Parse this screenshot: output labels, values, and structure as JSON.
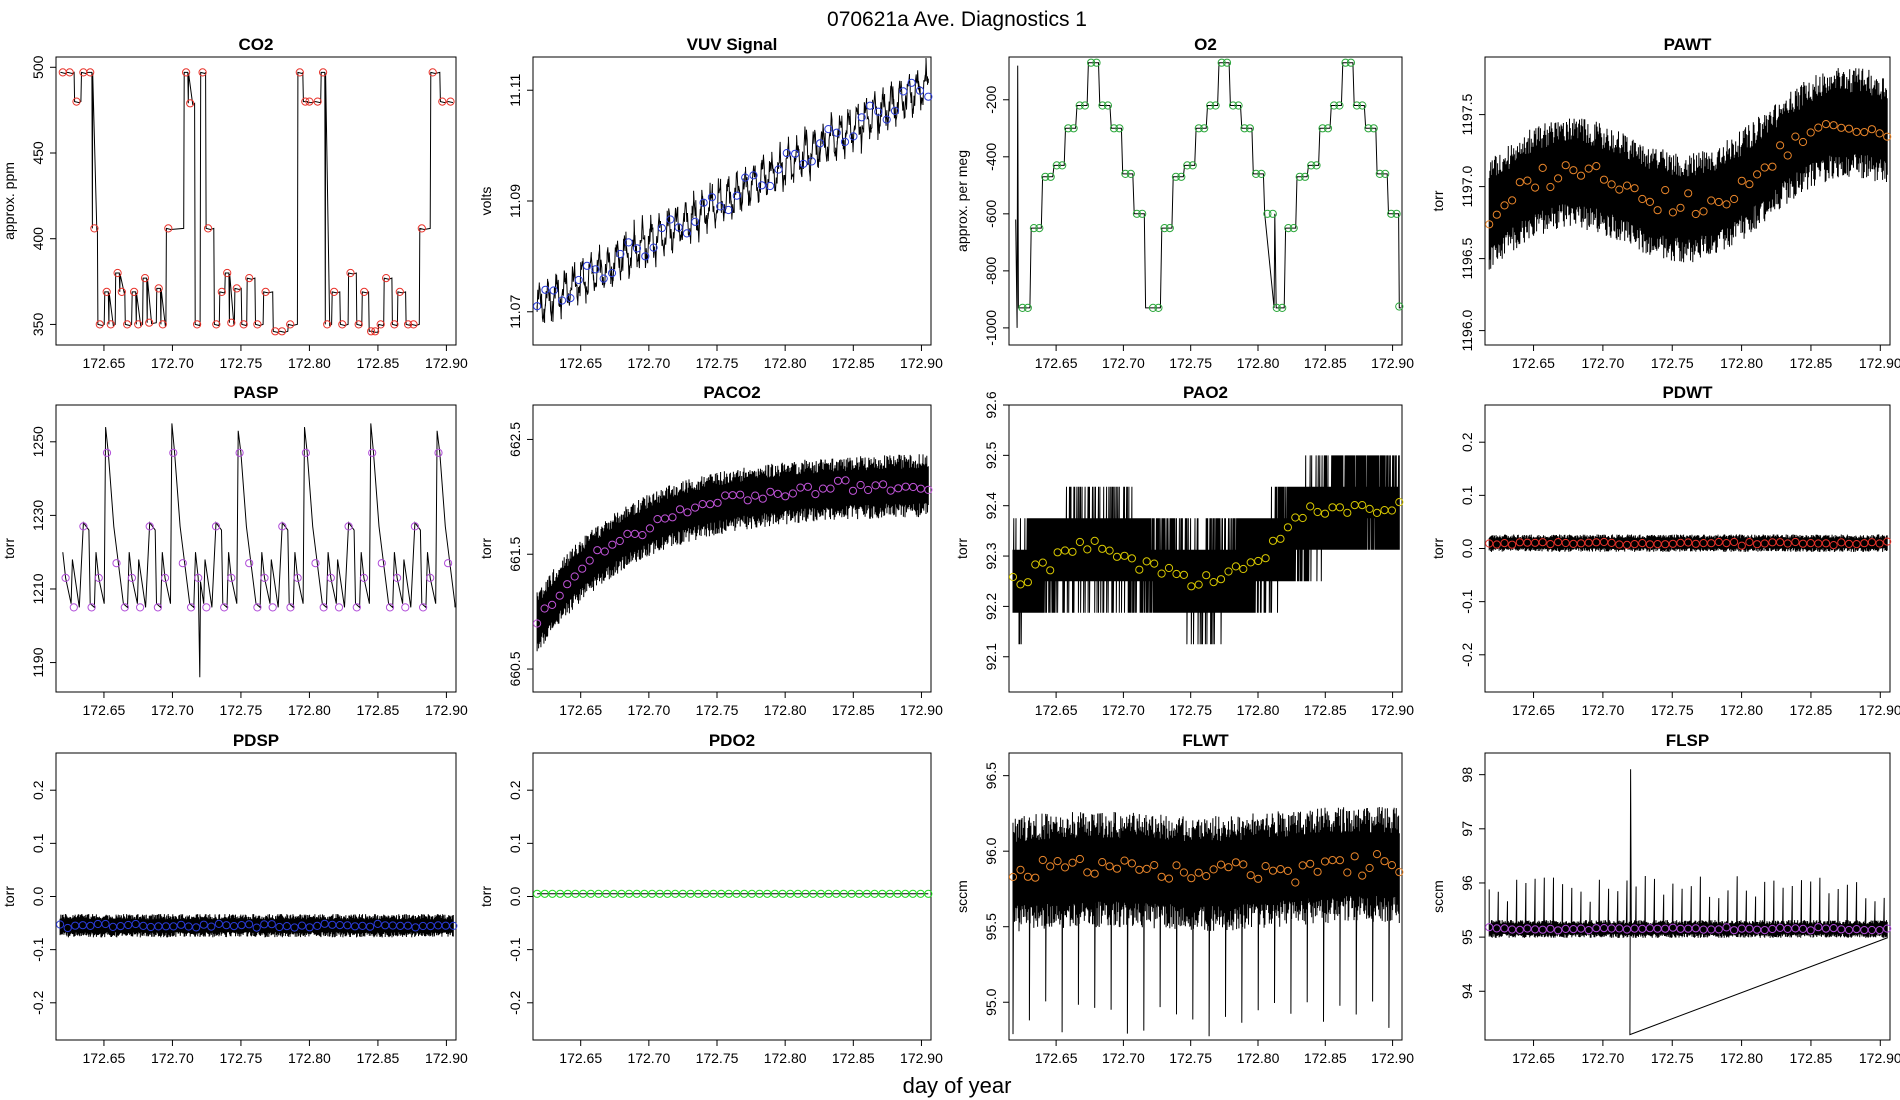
{
  "figure": {
    "title": "070621a   Ave. Diagnostics 1",
    "xlabel": "day of year"
  },
  "chart_data": [
    {
      "type": "line",
      "title": "CO2",
      "ylabel": "approx. ppm",
      "xlim": [
        172.615,
        172.907
      ],
      "ylim": [
        338,
        506
      ],
      "xticks": [
        172.65,
        172.7,
        172.75,
        172.8,
        172.85,
        172.9
      ],
      "xtick_labels": [
        "172.65",
        "172.70",
        "172.75",
        "172.80",
        "172.85",
        "172.90"
      ],
      "yticks": [
        350,
        400,
        450,
        500
      ],
      "ytick_labels": [
        "350",
        "400",
        "450",
        "500"
      ],
      "marker_color": "#e8322a",
      "pattern": "co2",
      "avg_x": [
        172.62,
        172.625,
        172.63,
        172.635,
        172.64,
        172.643,
        172.647,
        172.652,
        172.655,
        172.66,
        172.663,
        172.667,
        172.672,
        172.675,
        172.68,
        172.683,
        172.69,
        172.693,
        172.697,
        172.71,
        172.713,
        172.718,
        172.722,
        172.726,
        172.732,
        172.736,
        172.74,
        172.743,
        172.747,
        172.752,
        172.756,
        172.762,
        172.768,
        172.775,
        172.78,
        172.786,
        172.793,
        172.797,
        172.8,
        172.806,
        172.81,
        172.813,
        172.818,
        172.824,
        172.83,
        172.836,
        172.84,
        172.845,
        172.848,
        172.852,
        172.856,
        172.862,
        172.866,
        172.872,
        172.876,
        172.882,
        172.89,
        172.897,
        172.903
      ],
      "avg_y": [
        497,
        497,
        480,
        497,
        497,
        406,
        350,
        369,
        350,
        380,
        369,
        350,
        369,
        350,
        377,
        351,
        371,
        350,
        406,
        497,
        479,
        350,
        497,
        406,
        350,
        369,
        380,
        351,
        371,
        350,
        377,
        350,
        369,
        346,
        346,
        350,
        497,
        480,
        480,
        480,
        497,
        350,
        369,
        350,
        380,
        350,
        369,
        346,
        346,
        350,
        377,
        350,
        369,
        350,
        350,
        406,
        497,
        480,
        480
      ]
    },
    {
      "type": "line",
      "title": "VUV Signal",
      "ylabel": "volts",
      "xlim": [
        172.615,
        172.907
      ],
      "ylim": [
        11.064,
        11.116
      ],
      "xticks": [
        172.65,
        172.7,
        172.75,
        172.8,
        172.85,
        172.9
      ],
      "xtick_labels": [
        "172.65",
        "172.70",
        "172.75",
        "172.80",
        "172.85",
        "172.90"
      ],
      "yticks": [
        11.07,
        11.09,
        11.11
      ],
      "ytick_labels": [
        "11.07",
        "11.09",
        "11.11"
      ],
      "marker_color": "#2a3bd8",
      "pattern": "vuv",
      "start_value": 11.071,
      "end_value": 11.111
    },
    {
      "type": "line",
      "title": "O2",
      "ylabel": "approx. per meg",
      "xlim": [
        172.615,
        172.907
      ],
      "ylim": [
        -1060,
        -50
      ],
      "xticks": [
        172.65,
        172.7,
        172.75,
        172.8,
        172.85,
        172.9
      ],
      "xtick_labels": [
        "172.65",
        "172.70",
        "172.75",
        "172.80",
        "172.85",
        "172.90"
      ],
      "yticks": [
        -1000,
        -800,
        -600,
        -400,
        -200
      ],
      "ytick_labels": [
        "-1000",
        "-800",
        "-600",
        "-400",
        "-200"
      ],
      "marker_color": "#2aa63a",
      "pattern": "o2",
      "plateau_values": [
        -930,
        -650,
        -470,
        -300,
        -220,
        -70,
        -460,
        -600
      ]
    },
    {
      "type": "line",
      "title": "PAWT",
      "ylabel": "torr",
      "xlim": [
        172.615,
        172.907
      ],
      "ylim": [
        1195.9,
        1197.9
      ],
      "xticks": [
        172.65,
        172.7,
        172.75,
        172.8,
        172.85,
        172.9
      ],
      "xtick_labels": [
        "172.65",
        "172.70",
        "172.75",
        "172.80",
        "172.85",
        "172.90"
      ],
      "yticks": [
        1196.0,
        1196.5,
        1197.0,
        1197.5
      ],
      "ytick_labels": [
        "1196.0",
        "1196.5",
        "1197.0",
        "1197.5"
      ],
      "marker_color": "#e8852a",
      "pattern": "noise",
      "mean_start": 1196.8,
      "mean_end": 1197.3,
      "noise": 0.35
    },
    {
      "type": "line",
      "title": "PASP",
      "ylabel": "torr",
      "xlim": [
        172.615,
        172.907
      ],
      "ylim": [
        1182,
        1260
      ],
      "xticks": [
        172.65,
        172.7,
        172.75,
        172.8,
        172.85,
        172.9
      ],
      "xtick_labels": [
        "172.65",
        "172.70",
        "172.75",
        "172.80",
        "172.85",
        "172.90"
      ],
      "yticks": [
        1190,
        1210,
        1230,
        1250
      ],
      "ytick_labels": [
        "1190",
        "1210",
        "1230",
        "1250"
      ],
      "marker_color": "#b04cd8",
      "pattern": "pasp",
      "low_value": 1205,
      "high_value": 1247
    },
    {
      "type": "line",
      "title": "PACO2",
      "ylabel": "torr",
      "xlim": [
        172.615,
        172.907
      ],
      "ylim": [
        660.3,
        662.8
      ],
      "xticks": [
        172.65,
        172.7,
        172.75,
        172.8,
        172.85,
        172.9
      ],
      "xtick_labels": [
        "172.65",
        "172.70",
        "172.75",
        "172.80",
        "172.85",
        "172.90"
      ],
      "yticks": [
        660.5,
        661.5,
        662.5
      ],
      "ytick_labels": [
        "660.5",
        "661.5",
        "662.5"
      ],
      "marker_color": "#c054d8",
      "pattern": "saturate",
      "start_value": 660.9,
      "end_value": 662.1,
      "noise": 0.25
    },
    {
      "type": "line",
      "title": "PAO2",
      "ylabel": "torr",
      "xlim": [
        172.615,
        172.907
      ],
      "ylim": [
        92.03,
        92.6
      ],
      "xticks": [
        172.65,
        172.7,
        172.75,
        172.8,
        172.85,
        172.9
      ],
      "xtick_labels": [
        "172.65",
        "172.70",
        "172.75",
        "172.80",
        "172.85",
        "172.90"
      ],
      "yticks": [
        92.1,
        92.2,
        92.3,
        92.4,
        92.5,
        92.6
      ],
      "ytick_labels": [
        "92.1",
        "92.2",
        "92.3",
        "92.4",
        "92.5",
        "92.6"
      ],
      "marker_color": "#d8c800",
      "pattern": "quantized",
      "mean_start": 92.24,
      "mean_end": 92.37,
      "noise": 0.1
    },
    {
      "type": "line",
      "title": "PDWT",
      "ylabel": "torr",
      "xlim": [
        172.615,
        172.907
      ],
      "ylim": [
        -0.27,
        0.27
      ],
      "xticks": [
        172.65,
        172.7,
        172.75,
        172.8,
        172.85,
        172.9
      ],
      "xtick_labels": [
        "172.65",
        "172.70",
        "172.75",
        "172.80",
        "172.85",
        "172.90"
      ],
      "yticks": [
        -0.2,
        -0.1,
        0.0,
        0.1,
        0.2
      ],
      "ytick_labels": [
        "-0.2",
        "-0.1",
        "0.0",
        "0.1",
        "0.2"
      ],
      "marker_color": "#e8322a",
      "pattern": "flat",
      "mean_value": 0.01,
      "noise": 0.015
    },
    {
      "type": "line",
      "title": "PDSP",
      "ylabel": "torr",
      "xlim": [
        172.615,
        172.907
      ],
      "ylim": [
        -0.27,
        0.27
      ],
      "xticks": [
        172.65,
        172.7,
        172.75,
        172.8,
        172.85,
        172.9
      ],
      "xtick_labels": [
        "172.65",
        "172.70",
        "172.75",
        "172.80",
        "172.85",
        "172.90"
      ],
      "yticks": [
        -0.2,
        -0.1,
        0.0,
        0.1,
        0.2
      ],
      "ytick_labels": [
        "-0.2",
        "-0.1",
        "0.0",
        "0.1",
        "0.2"
      ],
      "marker_color": "#2a3bd8",
      "pattern": "flat",
      "mean_value": -0.055,
      "noise": 0.02
    },
    {
      "type": "line",
      "title": "PDO2",
      "ylabel": "torr",
      "xlim": [
        172.615,
        172.907
      ],
      "ylim": [
        -0.27,
        0.27
      ],
      "xticks": [
        172.65,
        172.7,
        172.75,
        172.8,
        172.85,
        172.9
      ],
      "xtick_labels": [
        "172.65",
        "172.70",
        "172.75",
        "172.80",
        "172.85",
        "172.90"
      ],
      "yticks": [
        -0.2,
        -0.1,
        0.0,
        0.1,
        0.2
      ],
      "ytick_labels": [
        "-0.2",
        "-0.1",
        "0.0",
        "0.1",
        "0.2"
      ],
      "marker_color": "#1fd81f",
      "pattern": "markers_only",
      "mean_value": 0.005
    },
    {
      "type": "line",
      "title": "FLWT",
      "ylabel": "sccm",
      "xlim": [
        172.615,
        172.907
      ],
      "ylim": [
        94.75,
        96.65
      ],
      "xticks": [
        172.65,
        172.7,
        172.75,
        172.8,
        172.85,
        172.9
      ],
      "xtick_labels": [
        "172.65",
        "172.70",
        "172.75",
        "172.80",
        "172.85",
        "172.90"
      ],
      "yticks": [
        95.0,
        95.5,
        96.0,
        96.5
      ],
      "ytick_labels": [
        "95.0",
        "95.5",
        "96.0",
        "96.5"
      ],
      "marker_color": "#e8852a",
      "pattern": "noise",
      "mean_start": 95.85,
      "mean_end": 95.9,
      "noise": 0.35
    },
    {
      "type": "line",
      "title": "FLSP",
      "ylabel": "sccm",
      "xlim": [
        172.615,
        172.907
      ],
      "ylim": [
        93.1,
        98.4
      ],
      "xticks": [
        172.65,
        172.7,
        172.75,
        172.8,
        172.85,
        172.9
      ],
      "xtick_labels": [
        "172.65",
        "172.70",
        "172.75",
        "172.80",
        "172.85",
        "172.90"
      ],
      "yticks": [
        94,
        95,
        96,
        97,
        98
      ],
      "ytick_labels": [
        "94",
        "95",
        "96",
        "97",
        "98"
      ],
      "marker_color": "#b04cd8",
      "pattern": "flsp",
      "mean_value": 95.15,
      "noise": 0.15
    }
  ]
}
